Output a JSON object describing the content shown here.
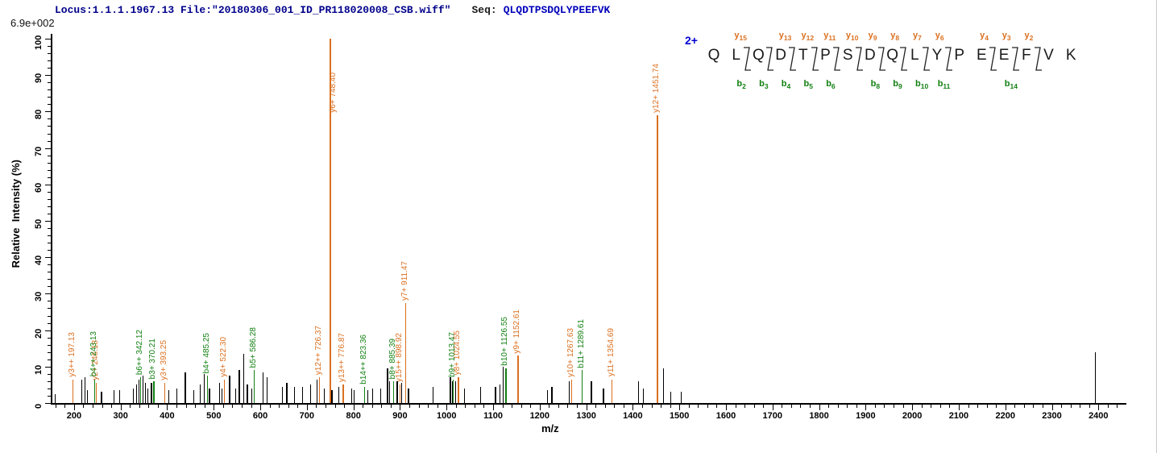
{
  "header": {
    "locus_file": "Locus:1.1.1.1967.13 File:\"20180306_001_ID_PR118020008_CSB.wiff\"",
    "seq_label": "Seq:",
    "seq_value": "QLQDTPSDQLYPEEFVK",
    "intensity_scale": "6.9e+002"
  },
  "colors": {
    "y_ion": "#db7020",
    "b_ion": "#128012",
    "unassigned_peak": "#000000",
    "header_blue": "#00008b",
    "seq_blue": "#0000bb",
    "charge_blue": "#0000d0",
    "axis": "#000000"
  },
  "peptide": {
    "charge": "2+",
    "residues": [
      "Q",
      "L",
      "Q",
      "D",
      "T",
      "P",
      "S",
      "D",
      "Q",
      "L",
      "Y",
      "P",
      "E",
      "E",
      "F",
      "V",
      "K"
    ],
    "cleavage_gaps": [
      2,
      3,
      4,
      5,
      6,
      7,
      8,
      9,
      10,
      11,
      13,
      14,
      15
    ],
    "y_ion_labels": [
      {
        "gap": 2,
        "ion": "y",
        "num": "15"
      },
      {
        "gap": 4,
        "ion": "y",
        "num": "13"
      },
      {
        "gap": 5,
        "ion": "y",
        "num": "12"
      },
      {
        "gap": 6,
        "ion": "y",
        "num": "11"
      },
      {
        "gap": 7,
        "ion": "y",
        "num": "10"
      },
      {
        "gap": 8,
        "ion": "y",
        "num": "9"
      },
      {
        "gap": 9,
        "ion": "y",
        "num": "8"
      },
      {
        "gap": 10,
        "ion": "y",
        "num": "7"
      },
      {
        "gap": 11,
        "ion": "y",
        "num": "6"
      },
      {
        "gap": 13,
        "ion": "y",
        "num": "4"
      },
      {
        "gap": 14,
        "ion": "y",
        "num": "3"
      },
      {
        "gap": 15,
        "ion": "y",
        "num": "2"
      }
    ],
    "b_ion_labels": [
      {
        "gap": 2,
        "ion": "b",
        "num": "2"
      },
      {
        "gap": 3,
        "ion": "b",
        "num": "3"
      },
      {
        "gap": 4,
        "ion": "b",
        "num": "4"
      },
      {
        "gap": 5,
        "ion": "b",
        "num": "5"
      },
      {
        "gap": 6,
        "ion": "b",
        "num": "6"
      },
      {
        "gap": 8,
        "ion": "b",
        "num": "8"
      },
      {
        "gap": 9,
        "ion": "b",
        "num": "9"
      },
      {
        "gap": 10,
        "ion": "b",
        "num": "10"
      },
      {
        "gap": 11,
        "ion": "b",
        "num": "11"
      },
      {
        "gap": 14,
        "ion": "b",
        "num": "14"
      }
    ]
  },
  "chart_data": {
    "type": "bar",
    "subtype": "centroided MS/MS peptide fragmentation spectrum",
    "title": "",
    "xlabel": "m/z",
    "ylabel": "Relative  Intensity (%)",
    "xlim": [
      150,
      2460
    ],
    "ylim": [
      0,
      100
    ],
    "grid": false,
    "x_major_ticks": [
      200,
      300,
      400,
      500,
      600,
      700,
      800,
      900,
      1000,
      1100,
      1200,
      1300,
      1400,
      1500,
      1600,
      1700,
      1800,
      1900,
      2000,
      2100,
      2200,
      2300,
      2400
    ],
    "x_minor_tick_step": 20,
    "y_major_ticks": [
      0,
      10,
      20,
      30,
      40,
      50,
      60,
      70,
      80,
      90,
      100
    ],
    "y_minor_tick_step": 2,
    "series": [
      {
        "name": "y-ions",
        "color_key": "y_ion",
        "points": [
          {
            "label": "y3++ 197.13",
            "mz": 197.13,
            "intensity": 6.5
          },
          {
            "label": "y2+ 246.18",
            "mz": 246.18,
            "intensity": 5.5
          },
          {
            "label": "y3+ 393.25",
            "mz": 393.25,
            "intensity": 5.5
          },
          {
            "label": "y4+ 522.30",
            "mz": 522.3,
            "intensity": 6.5
          },
          {
            "label": "y12++ 726.37",
            "mz": 726.37,
            "intensity": 7
          },
          {
            "label": "y6+ 748.40",
            "mz": 748.4,
            "intensity": 100,
            "label_dx": 5,
            "label_dy": 95
          },
          {
            "label": "y13++ 776.87",
            "mz": 776.87,
            "intensity": 5
          },
          {
            "label": "y15++ 898.92",
            "mz": 898.92,
            "intensity": 5
          },
          {
            "label": "y7+ 911.47",
            "mz": 911.47,
            "intensity": 27.5
          },
          {
            "label": "y8+ 1024.55",
            "mz": 1024.55,
            "intensity": 7
          },
          {
            "label": "y9+ 1152.61",
            "mz": 1152.61,
            "intensity": 13
          },
          {
            "label": "y10+ 1267.63",
            "mz": 1267.63,
            "intensity": 6.5
          },
          {
            "label": "y11+ 1354.69",
            "mz": 1354.69,
            "intensity": 6.5
          },
          {
            "label": "y12+ 1451.74",
            "mz": 1451.74,
            "intensity": 79
          }
        ]
      },
      {
        "name": "b-ions",
        "color_key": "b_ion",
        "points": [
          {
            "label": "b4++ 243.13",
            "mz": 243.13,
            "intensity": 6.5
          },
          {
            "label": "b6++ 342.12",
            "mz": 342.12,
            "intensity": 7
          },
          {
            "label": "b3+ 370.21",
            "mz": 370.21,
            "intensity": 6
          },
          {
            "label": "b4+ 485.25",
            "mz": 485.25,
            "intensity": 7.5
          },
          {
            "label": "b5+ 586.28",
            "mz": 586.28,
            "intensity": 9
          },
          {
            "label": "b14++ 823.36",
            "mz": 823.36,
            "intensity": 4.5
          },
          {
            "label": "b8+ 885.39",
            "mz": 885.39,
            "intensity": 6
          },
          {
            "label": "b9+ 1013.47",
            "mz": 1013.47,
            "intensity": 6.5
          },
          {
            "label": "b10+ 1126.55",
            "mz": 1126.55,
            "intensity": 9.5
          },
          {
            "label": "b11+ 1289.61",
            "mz": 1289.61,
            "intensity": 9
          }
        ]
      },
      {
        "name": "unassigned",
        "color_key": "unassigned_peak",
        "points_mz_intensity": [
          [
            158,
            2.5
          ],
          [
            216,
            6.5
          ],
          [
            222,
            7
          ],
          [
            228,
            3.5
          ],
          [
            258,
            3
          ],
          [
            285,
            3.5
          ],
          [
            297,
            3.5
          ],
          [
            326,
            4
          ],
          [
            333,
            5
          ],
          [
            339,
            6.5
          ],
          [
            347,
            7.5
          ],
          [
            352,
            5.5
          ],
          [
            357,
            4
          ],
          [
            365,
            5.5
          ],
          [
            403,
            3.5
          ],
          [
            420,
            4
          ],
          [
            438,
            8.5
          ],
          [
            456,
            3.5
          ],
          [
            470,
            5
          ],
          [
            478,
            8
          ],
          [
            490,
            4
          ],
          [
            512,
            5.5
          ],
          [
            517,
            4
          ],
          [
            533,
            7.5
          ],
          [
            546,
            4
          ],
          [
            554,
            9
          ],
          [
            563,
            13.5
          ],
          [
            571,
            5
          ],
          [
            580,
            4
          ],
          [
            605,
            8.5
          ],
          [
            613,
            7
          ],
          [
            647,
            4.5
          ],
          [
            656,
            5.5
          ],
          [
            672,
            4.5
          ],
          [
            689,
            4.5
          ],
          [
            707,
            5
          ],
          [
            721,
            6.5
          ],
          [
            736,
            4
          ],
          [
            753,
            3.5
          ],
          [
            768,
            4.5
          ],
          [
            795,
            4
          ],
          [
            801,
            3.5
          ],
          [
            830,
            3.5
          ],
          [
            840,
            4
          ],
          [
            858,
            4
          ],
          [
            872,
            9.5
          ],
          [
            876,
            6
          ],
          [
            893,
            6
          ],
          [
            903,
            5.5
          ],
          [
            917,
            4
          ],
          [
            970,
            4.5
          ],
          [
            1007,
            7
          ],
          [
            1012,
            6
          ],
          [
            1018,
            6
          ],
          [
            1037,
            4
          ],
          [
            1072,
            4.5
          ],
          [
            1104,
            4.5
          ],
          [
            1113,
            5
          ],
          [
            1121,
            10
          ],
          [
            1216,
            3.5
          ],
          [
            1225,
            4.5
          ],
          [
            1262,
            6
          ],
          [
            1310,
            6
          ],
          [
            1336,
            4
          ],
          [
            1411,
            6
          ],
          [
            1421,
            4
          ],
          [
            1465,
            9.5
          ],
          [
            1480,
            3
          ],
          [
            1503,
            3
          ],
          [
            2392,
            14
          ]
        ]
      }
    ]
  }
}
